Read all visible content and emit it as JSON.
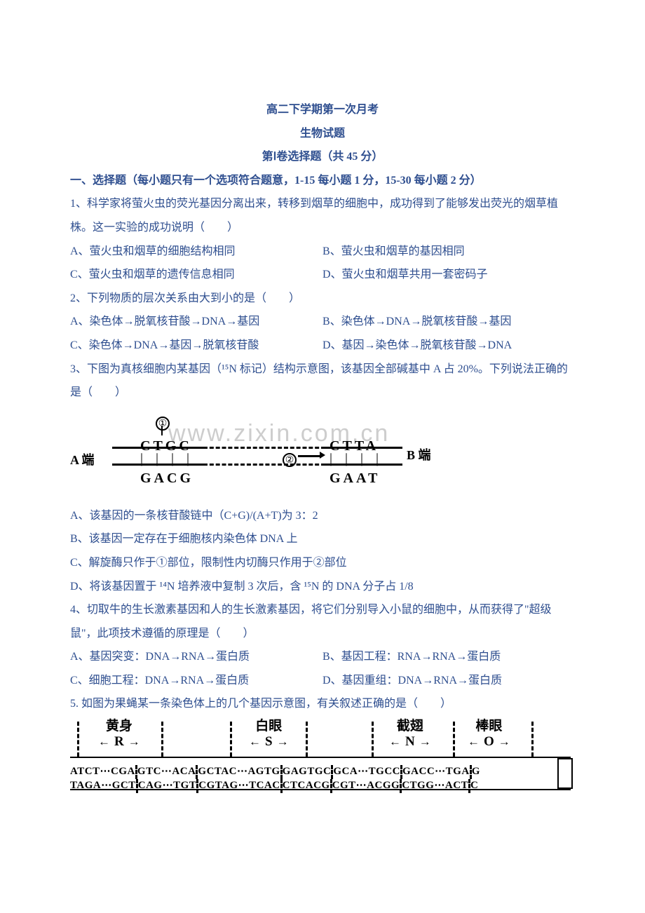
{
  "header": {
    "title": "高二下学期第一次月考",
    "subtitle": "生物试题",
    "section_title": "第Ⅰ卷选择题（共 45 分）",
    "instruction": "一、选择题（每小题只有一个选项符合题意，1-15 每小题 1 分，15-30 每小题 2 分）"
  },
  "q1": {
    "text": "1、科学家将萤火虫的荧光基因分离出来，转移到烟草的细胞中，成功得到了能够发出荧光的烟草植株。这一实验的成功说明（　　）",
    "a": "A、萤火虫和烟草的细胞结构相同",
    "b": "B、萤火虫和烟草的基因相同",
    "c": "C、萤火虫和烟草的遗传信息相同",
    "d": "D、萤火虫和烟草共用一套密码子"
  },
  "q2": {
    "text": "2、下列物质的层次关系由大到小的是（　　）",
    "a": "A、染色体→脱氧核苷酸→DNA→基因",
    "b": "B、染色体→DNA→脱氧核苷酸→基因",
    "c": "C、染色体→DNA→基因→脱氧核苷酸",
    "d": "D、基因→染色体→脱氧核苷酸→DNA"
  },
  "q3": {
    "text": "3、下图为真核细胞内某基因（¹⁵N 标记）结构示意图，该基因全部碱基中 A 占 20%。下列说法正确的是（　　）",
    "a": "A、该基因的一条核苷酸链中（C+G)/(A+T)为 3：2",
    "b": "B、该基因一定存在于细胞核内染色体 DNA 上",
    "c": "C、解旋酶只作于①部位，限制性内切酶只作用于②部位",
    "d": "D、将该基因置于 ¹⁴N 培养液中复制 3 次后，含 ¹⁵N 的 DNA 分子占 1/8"
  },
  "q4": {
    "text": "4、切取牛的生长激素基因和人的生长激素基因，将它们分别导入小鼠的细胞中，从而获得了\"超级鼠\"，此项技术遵循的原理是（　　）",
    "a": "A、基因突变：DNA→RNA→蛋白质",
    "b": "B、基因工程：RNA→RNA→蛋白质",
    "c": "C、细胞工程：DNA→RNA→蛋白质",
    "d": "D、基因重组：DNA→RNA→蛋白质"
  },
  "q5": {
    "text": "5. 如图为果蝇某一条染色体上的几个基因示意图，有关叙述正确的是（　　）"
  },
  "fig1": {
    "watermark": "www.zixin.com.cn",
    "label_a": "A 端",
    "label_b": "B 端",
    "circ1": "①",
    "circ2": "②",
    "top_left": "CTGC",
    "top_right": "CTTA",
    "bot_left": "GACG",
    "bot_right": "GAAT",
    "line_color": "#000000"
  },
  "fig2": {
    "genes": [
      {
        "name": "黄身",
        "letter": "R"
      },
      {
        "name": "白眼",
        "letter": "S"
      },
      {
        "name": "截翅",
        "letter": "N"
      },
      {
        "name": "棒眼",
        "letter": "O"
      }
    ],
    "seq_top": [
      "ATCT⋯CGA",
      "GTC⋯ACA",
      "GCTAC⋯AGTG",
      "GAGTGC",
      "GCA⋯TGCC",
      "GACC⋯TGA",
      "G"
    ],
    "seq_bot": [
      "TAGA⋯GCT",
      "CAG⋯TGT",
      "CGTAG⋯TCAC",
      "CTCACG",
      "CGT⋯ACGG",
      "CTGG⋯ACT",
      "C"
    ]
  }
}
